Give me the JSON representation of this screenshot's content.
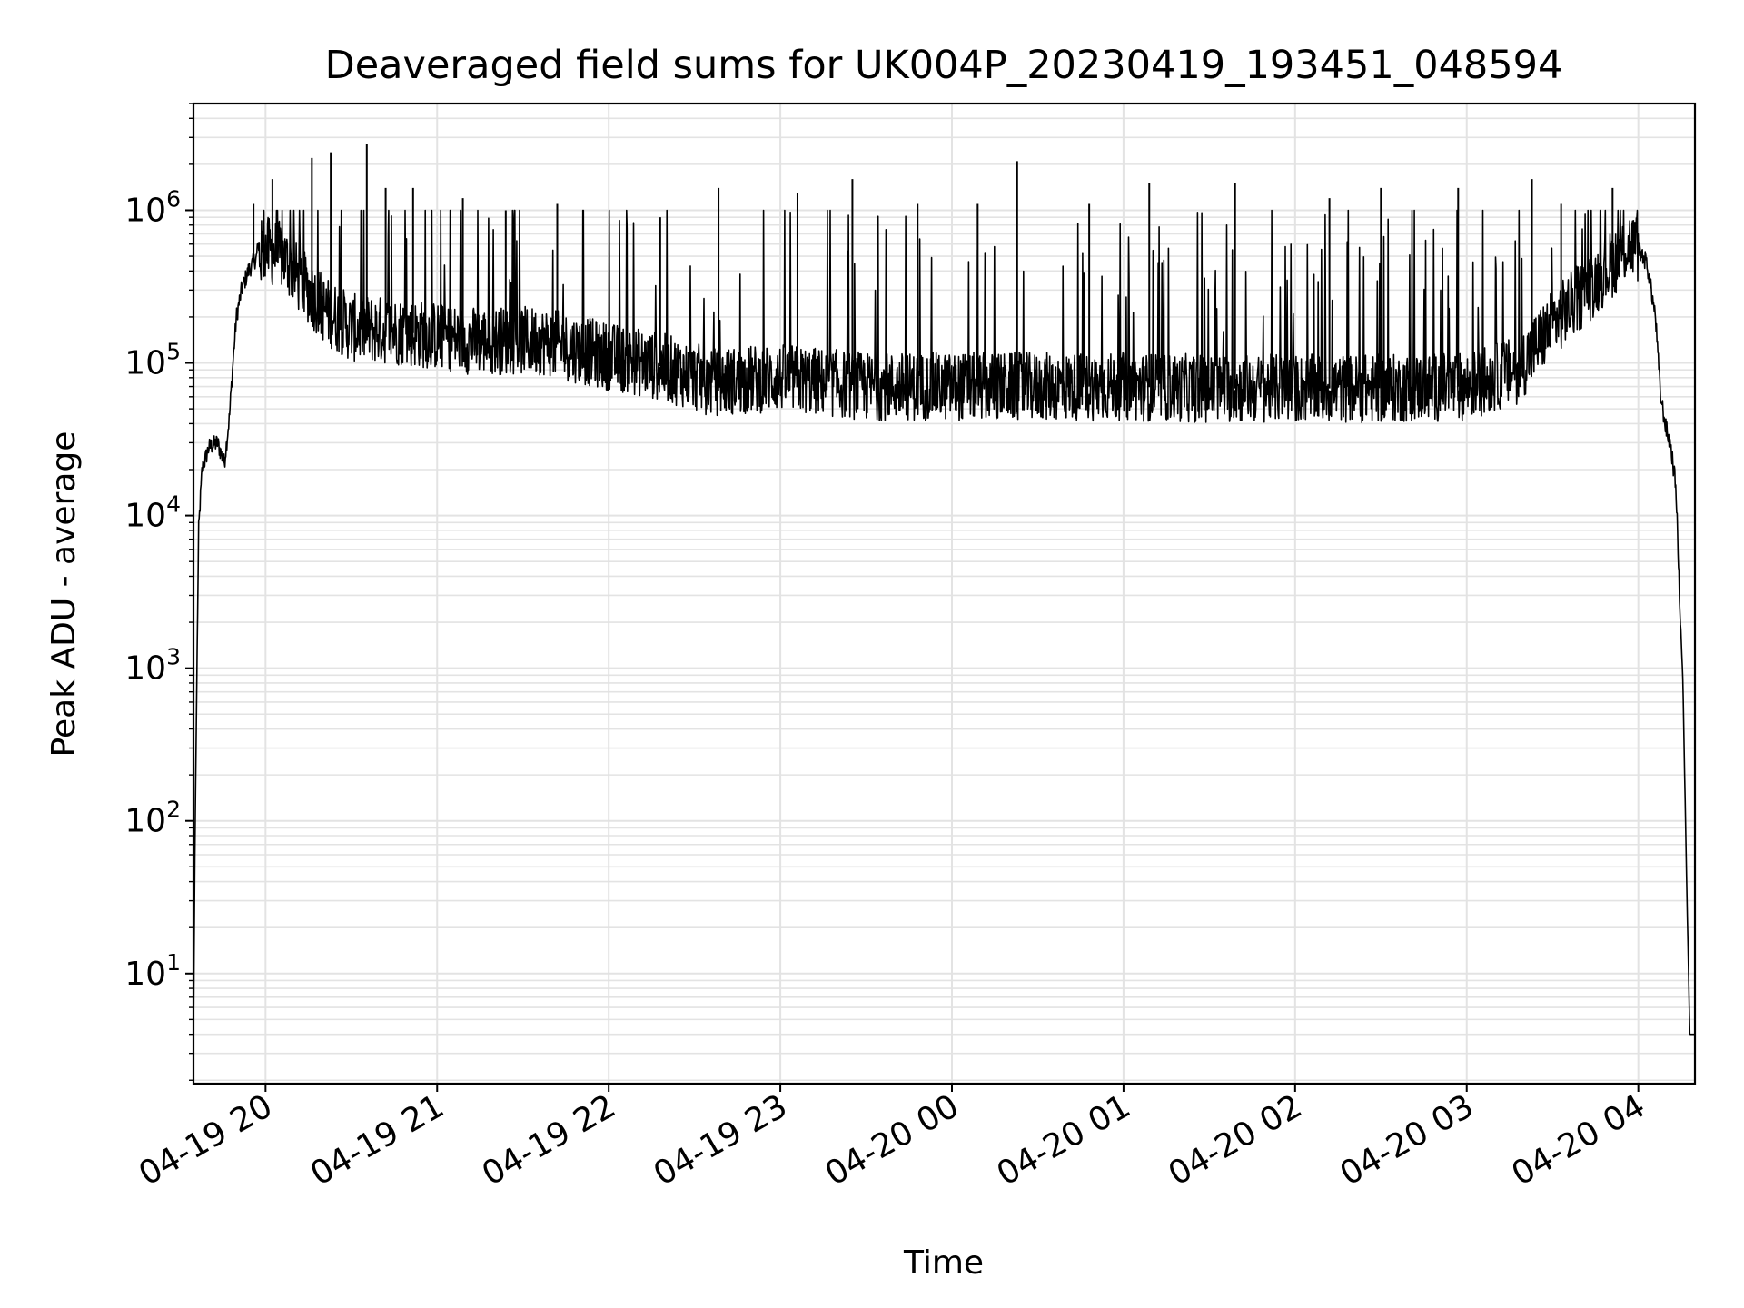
{
  "chart_data": {
    "type": "line",
    "title": "Deaveraged field sums for UK004P_20230419_193451_048594",
    "xlabel": "Time",
    "ylabel": "Peak ADU - average",
    "yscale": "log",
    "ylim": [
      1.9,
      5000000
    ],
    "xlim_hours": [
      -0.42,
      8.33
    ],
    "grid": true,
    "line_color": "#000000",
    "grid_color": "#e3e3e3",
    "x_ticks": [
      {
        "hour": 0,
        "label": "04-19 20"
      },
      {
        "hour": 1,
        "label": "04-19 21"
      },
      {
        "hour": 2,
        "label": "04-19 22"
      },
      {
        "hour": 3,
        "label": "04-19 23"
      },
      {
        "hour": 4,
        "label": "04-20 00"
      },
      {
        "hour": 5,
        "label": "04-20 01"
      },
      {
        "hour": 6,
        "label": "04-20 02"
      },
      {
        "hour": 7,
        "label": "04-20 03"
      },
      {
        "hour": 8,
        "label": "04-20 04"
      }
    ],
    "y_ticks": [
      {
        "value": 10,
        "base": "10",
        "exp": "1"
      },
      {
        "value": 100,
        "base": "10",
        "exp": "2"
      },
      {
        "value": 1000,
        "base": "10",
        "exp": "3"
      },
      {
        "value": 10000,
        "base": "10",
        "exp": "4"
      },
      {
        "value": 100000,
        "base": "10",
        "exp": "5"
      },
      {
        "value": 1000000,
        "base": "10",
        "exp": "6"
      }
    ],
    "series": [
      {
        "name": "Deaveraged field sum",
        "x_hours": [
          -0.42,
          -0.41,
          -0.39,
          -0.37,
          -0.33,
          -0.28,
          -0.24,
          -0.21,
          -0.19,
          -0.17,
          -0.14,
          -0.1,
          -0.05,
          0.0,
          0.1,
          0.2,
          0.35,
          0.5,
          0.8,
          1.2,
          1.6,
          2.0,
          2.3,
          2.6,
          3.0,
          3.5,
          4.0,
          4.5,
          5.0,
          5.5,
          6.0,
          6.5,
          7.0,
          7.3,
          7.5,
          7.7,
          7.85,
          7.95,
          8.0,
          8.05,
          8.1,
          8.13,
          8.16,
          8.19,
          8.22,
          8.24,
          8.26,
          8.28,
          8.3,
          8.31,
          8.32,
          8.33
        ],
        "baseline": [
          4,
          100,
          8000,
          20000,
          28000,
          30000,
          22000,
          45000,
          100000,
          200000,
          300000,
          400000,
          500000,
          550000,
          500000,
          350000,
          220000,
          170000,
          160000,
          140000,
          140000,
          110000,
          95000,
          75000,
          80000,
          70000,
          70000,
          70000,
          70000,
          68000,
          68000,
          68000,
          70000,
          90000,
          180000,
          300000,
          450000,
          600000,
          560000,
          450000,
          200000,
          60000,
          38000,
          28000,
          15000,
          3000,
          800,
          50,
          4,
          4,
          4,
          4
        ],
        "spikes": [
          {
            "hour": -0.07,
            "value": 1100000
          },
          {
            "hour": 0.04,
            "value": 1600000
          },
          {
            "hour": 0.27,
            "value": 2200000
          },
          {
            "hour": 0.38,
            "value": 2400000
          },
          {
            "hour": 0.59,
            "value": 2700000
          },
          {
            "hour": 0.7,
            "value": 1400000
          },
          {
            "hour": 0.86,
            "value": 1400000
          },
          {
            "hour": 1.15,
            "value": 1200000
          },
          {
            "hour": 1.4,
            "value": 1000000
          },
          {
            "hour": 1.7,
            "value": 1100000
          },
          {
            "hour": 2.3,
            "value": 900000
          },
          {
            "hour": 2.64,
            "value": 1400000
          },
          {
            "hour": 3.1,
            "value": 1300000
          },
          {
            "hour": 3.42,
            "value": 1600000
          },
          {
            "hour": 3.8,
            "value": 1100000
          },
          {
            "hour": 4.15,
            "value": 1100000
          },
          {
            "hour": 4.38,
            "value": 2100000
          },
          {
            "hour": 4.8,
            "value": 1100000
          },
          {
            "hour": 5.15,
            "value": 1500000
          },
          {
            "hour": 5.65,
            "value": 1500000
          },
          {
            "hour": 6.2,
            "value": 1200000
          },
          {
            "hour": 6.5,
            "value": 1400000
          },
          {
            "hour": 6.95,
            "value": 1400000
          },
          {
            "hour": 7.38,
            "value": 1600000
          },
          {
            "hour": 7.55,
            "value": 1100000
          },
          {
            "hour": 7.85,
            "value": 1400000
          }
        ]
      }
    ]
  }
}
